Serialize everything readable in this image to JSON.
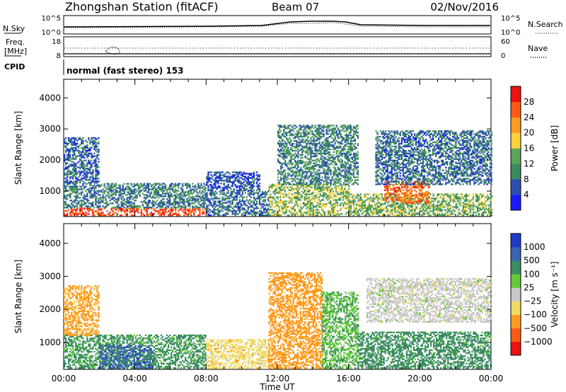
{
  "header": {
    "title": "Zhongshan Station (fitACF)",
    "beam": "Beam 07",
    "date": "02/Nov/2016"
  },
  "meta_panels": {
    "nsky_label": "N.Sky",
    "nsky_ticks": [
      "10^5",
      "10^0"
    ],
    "nsearch_label": "N.Search",
    "nsearch_ticks": [
      "10^5",
      "10^0"
    ],
    "freq_label": "Freq.",
    "freq_unit": "[MHz]",
    "freq_ticks": [
      "18",
      "8"
    ],
    "nave_label": "Nave",
    "nave_ticks": [
      "60",
      "0"
    ],
    "cpid_label": "CPID",
    "cpid_value": "normal (fast stereo) 153"
  },
  "colors": {
    "power_scale": [
      "#1a1aff",
      "#2b4fb0",
      "#3c8a60",
      "#5aa55a",
      "#ffd23c",
      "#ff9b1e",
      "#ff5a14",
      "#ee1111"
    ],
    "velocity_scale": [
      "#1e3cc8",
      "#3c64b4",
      "#3c8c64",
      "#64c83c",
      "#c8c8c8",
      "#f0dc64",
      "#ff9b1e",
      "#ff5a14",
      "#ee1111"
    ]
  },
  "chart_data": [
    {
      "type": "heatmap",
      "name": "power",
      "ylabel": "Slant Range [km]",
      "xlabel": "Time UT",
      "x_ticks": [
        "00:00",
        "04:00",
        "08:00",
        "12:00",
        "16:00",
        "20:00",
        "00:00"
      ],
      "xlim_hours": [
        0,
        24
      ],
      "y_ticks": [
        1000,
        2000,
        3000,
        4000
      ],
      "ylim": [
        180,
        4600
      ],
      "colorbar": {
        "label": "Power [dB]",
        "ticks": [
          4,
          8,
          12,
          16,
          20,
          24,
          28
        ],
        "range": [
          0,
          32
        ]
      },
      "regions": [
        {
          "t": [
            0.0,
            8.0
          ],
          "r": [
            200,
            450
          ],
          "v": 27
        },
        {
          "t": [
            0.0,
            8.0
          ],
          "r": [
            450,
            1250
          ],
          "v": 9
        },
        {
          "t": [
            0.0,
            2.0
          ],
          "r": [
            1250,
            2700
          ],
          "v": 7
        },
        {
          "t": [
            8.0,
            11.5
          ],
          "r": [
            200,
            1000
          ],
          "v": 8
        },
        {
          "t": [
            8.0,
            11.0
          ],
          "r": [
            1000,
            1600
          ],
          "v": 6
        },
        {
          "t": [
            11.5,
            16.0
          ],
          "r": [
            200,
            1200
          ],
          "v": 15
        },
        {
          "t": [
            12.0,
            16.5
          ],
          "r": [
            1200,
            3100
          ],
          "v": 10
        },
        {
          "t": [
            16.0,
            24.0
          ],
          "r": [
            200,
            900
          ],
          "v": 14
        },
        {
          "t": [
            18.0,
            20.5
          ],
          "r": [
            600,
            1300
          ],
          "v": 25
        },
        {
          "t": [
            17.5,
            24.0
          ],
          "r": [
            1200,
            2950
          ],
          "v": 8
        }
      ]
    },
    {
      "type": "heatmap",
      "name": "velocity",
      "ylabel": "Slant Range [km]",
      "xlabel": "Time UT",
      "x_ticks": [
        "00:00",
        "04:00",
        "08:00",
        "12:00",
        "16:00",
        "20:00",
        "00:00"
      ],
      "xlim_hours": [
        0,
        24
      ],
      "y_ticks": [
        1000,
        2000,
        3000,
        4000
      ],
      "ylim": [
        180,
        4600
      ],
      "colorbar": {
        "label": "Velocity [m s⁻¹]",
        "ticks": [
          "1000",
          "500",
          "100",
          "25",
          "−25",
          "−100",
          "−500",
          "−1000"
        ]
      },
      "regions": [
        {
          "t": [
            0.0,
            8.0
          ],
          "r": [
            200,
            1200
          ],
          "v": 150
        },
        {
          "t": [
            2.0,
            5.0
          ],
          "r": [
            200,
            900
          ],
          "v": 700
        },
        {
          "t": [
            0.0,
            2.0
          ],
          "r": [
            1200,
            2700
          ],
          "v": -150
        },
        {
          "t": [
            8.0,
            11.5
          ],
          "r": [
            200,
            1100
          ],
          "v": -60
        },
        {
          "t": [
            11.5,
            14.5
          ],
          "r": [
            200,
            3100
          ],
          "v": -250
        },
        {
          "t": [
            14.5,
            16.5
          ],
          "r": [
            200,
            2500
          ],
          "v": 80
        },
        {
          "t": [
            16.5,
            24.0
          ],
          "r": [
            200,
            1300
          ],
          "v": 200
        },
        {
          "t": [
            17.0,
            24.0
          ],
          "r": [
            1600,
            2950
          ],
          "v": 0
        }
      ]
    }
  ]
}
